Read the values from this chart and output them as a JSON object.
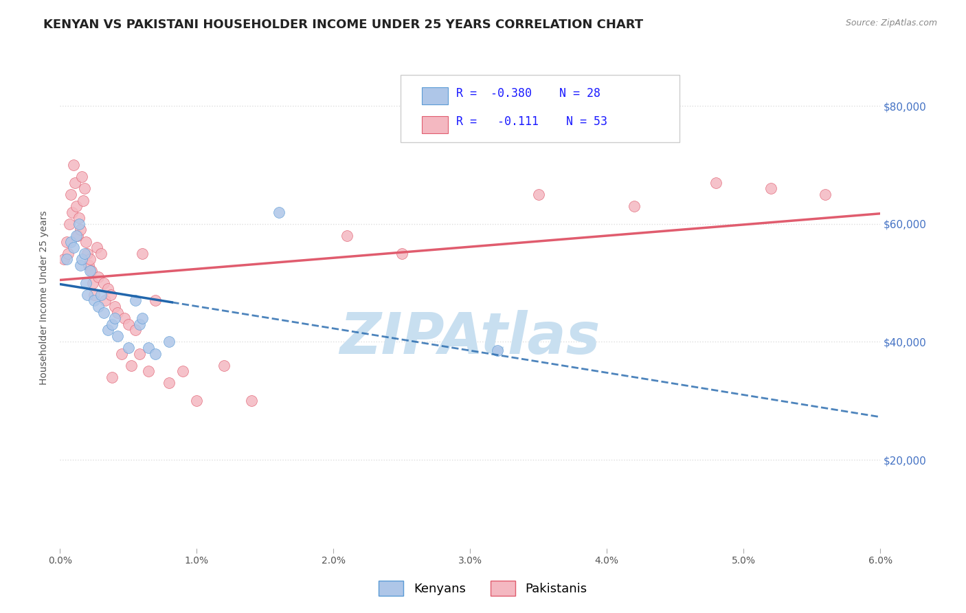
{
  "title": "KENYAN VS PAKISTANI HOUSEHOLDER INCOME UNDER 25 YEARS CORRELATION CHART",
  "source": "Source: ZipAtlas.com",
  "ylabel": "Householder Income Under 25 years",
  "xlim": [
    0.0,
    6.0
  ],
  "ylim": [
    5000,
    90000
  ],
  "yticks": [
    20000,
    40000,
    60000,
    80000
  ],
  "ytick_labels": [
    "$20,000",
    "$40,000",
    "$60,000",
    "$80,000"
  ],
  "xtick_vals": [
    0.0,
    1.0,
    2.0,
    3.0,
    4.0,
    5.0,
    6.0
  ],
  "xtick_labels": [
    "0.0%",
    "1.0%",
    "2.0%",
    "3.0%",
    "4.0%",
    "5.0%",
    "6.0%"
  ],
  "background_color": "#ffffff",
  "grid_color": "#dddddd",
  "watermark": "ZIPAtlas",
  "watermark_color": "#c8dff0",
  "watermark_fontsize": 60,
  "kenyan_color": "#aec6e8",
  "kenyan_edge": "#5b9bd5",
  "kenyan_R": -0.38,
  "kenyan_N": 28,
  "kenyan_line_color": "#2166ac",
  "kenyan_x": [
    0.05,
    0.08,
    0.1,
    0.12,
    0.14,
    0.15,
    0.16,
    0.18,
    0.19,
    0.2,
    0.22,
    0.25,
    0.28,
    0.3,
    0.32,
    0.35,
    0.38,
    0.4,
    0.42,
    0.5,
    0.55,
    0.58,
    0.6,
    0.65,
    0.7,
    0.8,
    1.6,
    3.2
  ],
  "kenyan_y": [
    54000,
    57000,
    56000,
    58000,
    60000,
    53000,
    54000,
    55000,
    50000,
    48000,
    52000,
    47000,
    46000,
    48000,
    45000,
    42000,
    43000,
    44000,
    41000,
    39000,
    47000,
    43000,
    44000,
    39000,
    38000,
    40000,
    62000,
    38500
  ],
  "pakistani_color": "#f4b8c1",
  "pakistani_edge": "#e05c6e",
  "pakistani_R": -0.111,
  "pakistani_N": 53,
  "pakistani_line_color": "#e05c6e",
  "pakistani_x": [
    0.03,
    0.05,
    0.06,
    0.07,
    0.08,
    0.09,
    0.1,
    0.11,
    0.12,
    0.13,
    0.14,
    0.15,
    0.16,
    0.17,
    0.18,
    0.19,
    0.2,
    0.21,
    0.22,
    0.23,
    0.24,
    0.25,
    0.27,
    0.28,
    0.3,
    0.32,
    0.33,
    0.35,
    0.37,
    0.38,
    0.4,
    0.42,
    0.45,
    0.47,
    0.5,
    0.52,
    0.55,
    0.58,
    0.6,
    0.65,
    0.7,
    0.8,
    0.9,
    1.0,
    1.2,
    1.4,
    2.1,
    2.5,
    3.5,
    4.2,
    4.8,
    5.2,
    5.6
  ],
  "pakistani_y": [
    54000,
    57000,
    55000,
    60000,
    65000,
    62000,
    70000,
    67000,
    63000,
    58000,
    61000,
    59000,
    68000,
    64000,
    66000,
    57000,
    55000,
    53000,
    54000,
    52000,
    50000,
    48000,
    56000,
    51000,
    55000,
    50000,
    47000,
    49000,
    48000,
    34000,
    46000,
    45000,
    38000,
    44000,
    43000,
    36000,
    42000,
    38000,
    55000,
    35000,
    47000,
    33000,
    35000,
    30000,
    36000,
    30000,
    58000,
    55000,
    65000,
    63000,
    67000,
    66000,
    65000
  ],
  "kenyan_solid_end": 0.82,
  "kenyan_dash_end": 6.0,
  "marker_size": 130,
  "title_fontsize": 13,
  "label_fontsize": 10,
  "legend_fontsize": 12
}
